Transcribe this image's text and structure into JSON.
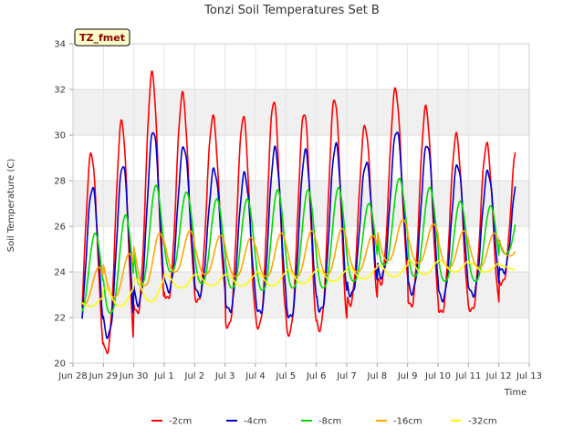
{
  "chart_data": {
    "type": "line",
    "title": "Tonzi Soil Temperatures Set B",
    "xlabel": "Time",
    "ylabel": "Soil Temperature (C)",
    "badge": "TZ_fmet",
    "x_tick_labels": [
      "Jun 28",
      "Jun 29",
      "Jun 30",
      "Jul 1",
      "Jul 2",
      "Jul 3",
      "Jul 4",
      "Jul 5",
      "Jul 6",
      "Jul 7",
      "Jul 8",
      "Jul 9",
      "Jul 10",
      "Jul 11",
      "Jul 12",
      "Jul 13"
    ],
    "xlim": [
      "Jun 28",
      "Jul 13"
    ],
    "ylim": [
      20,
      34
    ],
    "y_ticks": [
      20,
      22,
      24,
      26,
      28,
      30,
      32,
      34
    ],
    "background_bands": "alternating light-gray horizontal bands between y gridlines",
    "grid": true,
    "legend_position": "bottom",
    "x_days": [
      "Jun 28",
      "Jun 29",
      "Jun 30",
      "Jul 1",
      "Jul 2",
      "Jul 3",
      "Jul 4",
      "Jul 5",
      "Jul 6",
      "Jul 7",
      "Jul 8",
      "Jul 9",
      "Jul 10",
      "Jul 11",
      "Jul 12"
    ],
    "series": [
      {
        "name": "-2cm",
        "color": "#ff0000",
        "daily_min": [
          20.3,
          20.5,
          22.2,
          22.8,
          22.7,
          21.6,
          21.6,
          21.3,
          21.5,
          22.6,
          23.5,
          22.5,
          22.2,
          22.3,
          23.5
        ],
        "daily_max": [
          29.2,
          30.6,
          32.7,
          31.8,
          30.8,
          30.8,
          31.5,
          31.0,
          31.6,
          30.4,
          32.0,
          31.2,
          30.0,
          29.6,
          29.6
        ]
      },
      {
        "name": "-4cm",
        "color": "#0000cc",
        "daily_min": [
          21.0,
          21.2,
          22.6,
          23.2,
          23.0,
          22.3,
          22.2,
          22.0,
          22.3,
          23.0,
          23.8,
          23.1,
          22.8,
          23.0,
          24.0
        ],
        "daily_max": [
          27.7,
          28.7,
          30.2,
          29.5,
          28.5,
          28.3,
          29.4,
          29.3,
          29.6,
          28.8,
          30.2,
          29.6,
          28.7,
          28.4,
          28.4
        ]
      },
      {
        "name": "-8cm",
        "color": "#00dd00",
        "daily_min": [
          22.2,
          22.2,
          23.4,
          24.0,
          23.5,
          23.3,
          23.2,
          23.3,
          23.3,
          23.6,
          24.3,
          23.8,
          23.6,
          23.6,
          24.8
        ],
        "daily_max": [
          25.7,
          26.5,
          27.8,
          27.5,
          27.2,
          27.2,
          27.6,
          27.6,
          27.7,
          27.0,
          28.1,
          27.7,
          27.1,
          26.9,
          26.9
        ]
      },
      {
        "name": "-16cm",
        "color": "#ffa500",
        "daily_min": [
          22.6,
          22.9,
          23.4,
          24.0,
          23.9,
          23.8,
          23.8,
          23.8,
          23.9,
          24.0,
          24.5,
          24.4,
          24.2,
          24.2,
          24.7
        ],
        "daily_max": [
          24.2,
          24.8,
          25.7,
          25.8,
          25.6,
          25.5,
          25.7,
          25.8,
          25.9,
          25.6,
          26.3,
          26.1,
          25.8,
          25.7,
          25.6
        ]
      },
      {
        "name": "-32cm",
        "color": "#ffff00",
        "daily_min": [
          22.5,
          22.5,
          22.7,
          23.3,
          23.4,
          23.4,
          23.4,
          23.5,
          23.6,
          23.7,
          23.8,
          23.9,
          24.0,
          24.0,
          24.1
        ],
        "daily_max": [
          22.9,
          23.3,
          23.7,
          23.9,
          23.9,
          23.9,
          24.0,
          24.1,
          24.1,
          24.2,
          24.3,
          24.5,
          24.5,
          24.4,
          24.3
        ]
      }
    ]
  }
}
